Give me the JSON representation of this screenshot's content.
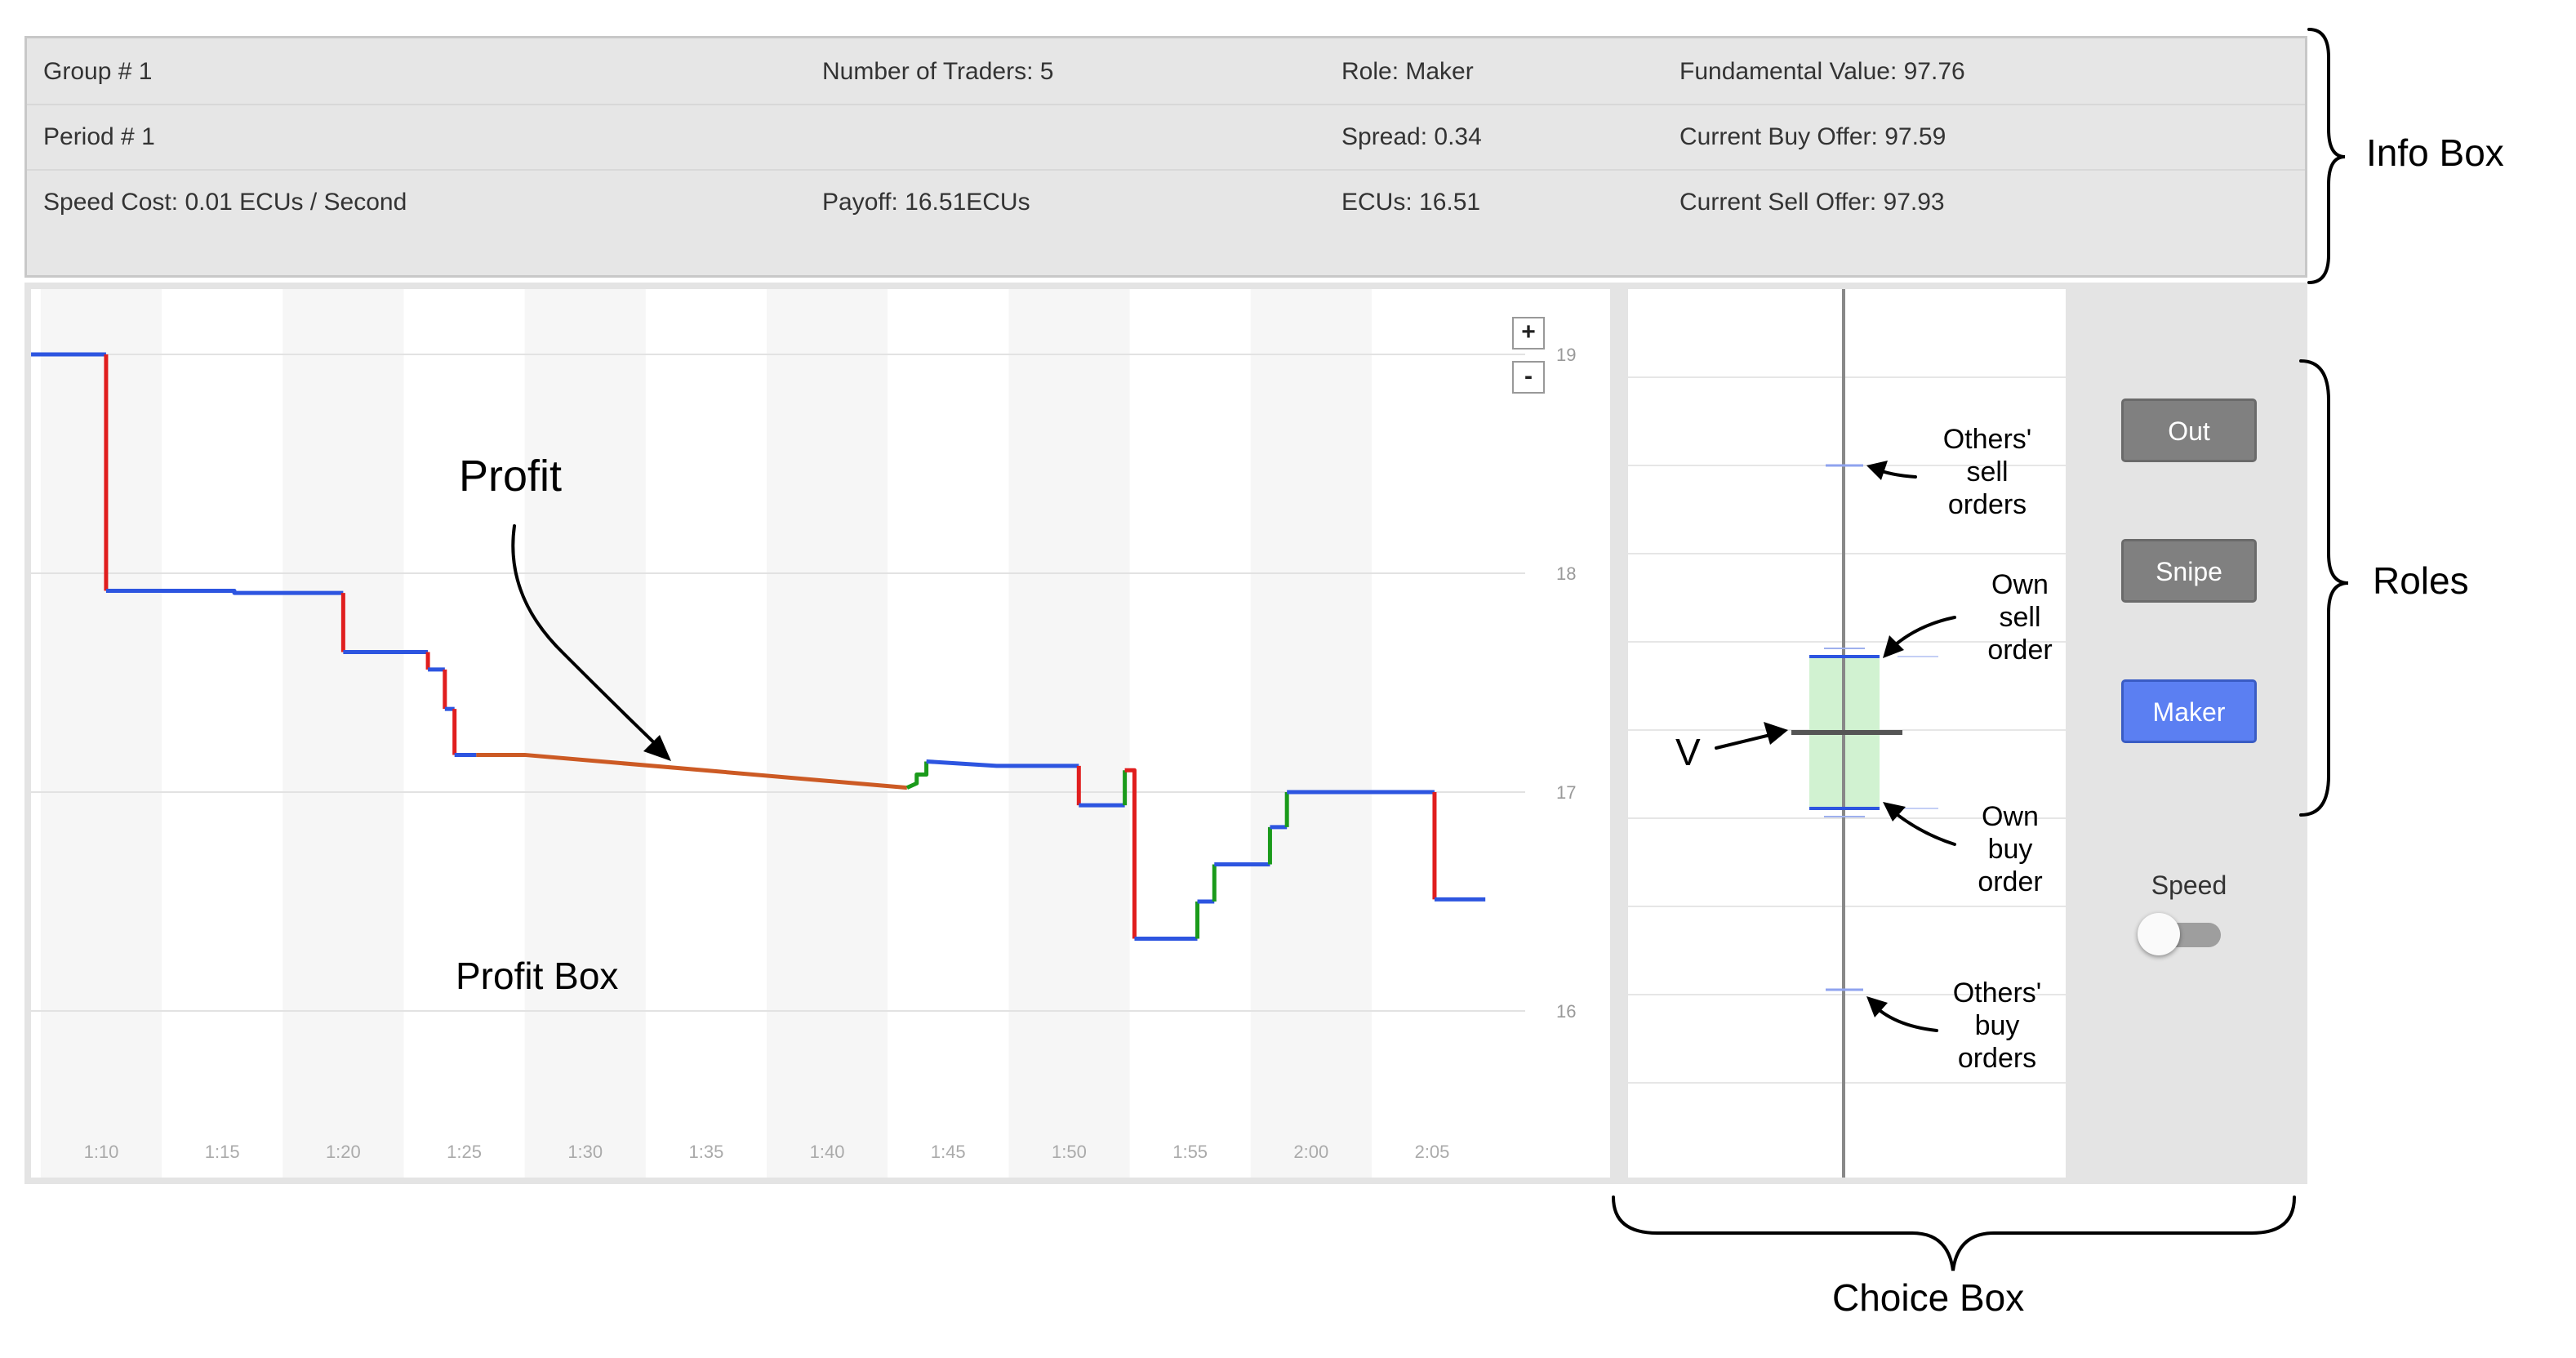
{
  "info_box": {
    "rows": [
      [
        "Group # 1",
        "Number of Traders: 5",
        "Role: Maker",
        "Fundamental Value: 97.76"
      ],
      [
        "Period # 1",
        "",
        "Spread: 0.34",
        "Current Buy Offer: 97.59"
      ],
      [
        "Speed Cost: 0.01 ECUs / Second",
        "Payoff: 16.51ECUs",
        "ECUs: 16.51",
        "Current Sell Offer: 97.93"
      ]
    ]
  },
  "profit_chart": {
    "zoom_in": "+",
    "zoom_out": "-"
  },
  "chart_data": {
    "type": "line",
    "x_tick_labels": [
      "1:10",
      "1:15",
      "1:20",
      "1:25",
      "1:30",
      "1:35",
      "1:40",
      "1:45",
      "1:50",
      "1:55",
      "2:00",
      "2:05"
    ],
    "y_tick_labels": [
      "19",
      "18",
      "17",
      "16"
    ],
    "ylim": [
      15.5,
      19.3
    ],
    "colors": {
      "maker": "#2d55e0",
      "snipe": "#e01e1e",
      "out": "#cc5a24",
      "gain": "#1a9a1a"
    },
    "segments": [
      {
        "role": "maker",
        "points": [
          [
            67.1,
            19.0
          ],
          [
            70.2,
            19.0
          ]
        ]
      },
      {
        "role": "snipe",
        "points": [
          [
            70.2,
            19.0
          ],
          [
            70.2,
            17.92
          ]
        ]
      },
      {
        "role": "maker",
        "points": [
          [
            70.2,
            17.92
          ],
          [
            75.5,
            17.92
          ],
          [
            75.5,
            17.91
          ],
          [
            80.0,
            17.91
          ]
        ]
      },
      {
        "role": "snipe",
        "points": [
          [
            80.0,
            17.91
          ],
          [
            80.0,
            17.64
          ]
        ]
      },
      {
        "role": "maker",
        "points": [
          [
            80.0,
            17.64
          ],
          [
            83.5,
            17.64
          ]
        ]
      },
      {
        "role": "snipe",
        "points": [
          [
            83.5,
            17.64
          ],
          [
            83.5,
            17.56
          ]
        ]
      },
      {
        "role": "maker",
        "points": [
          [
            83.5,
            17.56
          ],
          [
            84.2,
            17.56
          ]
        ]
      },
      {
        "role": "snipe",
        "points": [
          [
            84.2,
            17.56
          ],
          [
            84.2,
            17.38
          ]
        ]
      },
      {
        "role": "maker",
        "points": [
          [
            84.2,
            17.38
          ],
          [
            84.6,
            17.38
          ]
        ]
      },
      {
        "role": "snipe",
        "points": [
          [
            84.6,
            17.38
          ],
          [
            84.6,
            17.17
          ]
        ]
      },
      {
        "role": "maker",
        "points": [
          [
            84.6,
            17.17
          ],
          [
            85.5,
            17.17
          ]
        ]
      },
      {
        "role": "out",
        "points": [
          [
            85.5,
            17.17
          ],
          [
            87.5,
            17.17
          ],
          [
            103.3,
            17.02
          ]
        ]
      },
      {
        "role": "gain",
        "points": [
          [
            103.3,
            17.02
          ],
          [
            103.7,
            17.04
          ],
          [
            103.7,
            17.08
          ],
          [
            104.1,
            17.08
          ],
          [
            104.1,
            17.14
          ]
        ]
      },
      {
        "role": "maker",
        "points": [
          [
            104.1,
            17.14
          ],
          [
            107.0,
            17.12
          ],
          [
            110.4,
            17.12
          ]
        ]
      },
      {
        "role": "snipe",
        "points": [
          [
            110.4,
            17.12
          ],
          [
            110.4,
            16.94
          ]
        ]
      },
      {
        "role": "maker",
        "points": [
          [
            110.4,
            16.94
          ],
          [
            112.3,
            16.94
          ]
        ]
      },
      {
        "role": "gain",
        "points": [
          [
            112.3,
            16.94
          ],
          [
            112.3,
            17.1
          ]
        ]
      },
      {
        "role": "snipe",
        "points": [
          [
            112.3,
            17.1
          ],
          [
            112.7,
            17.1
          ],
          [
            112.7,
            16.33
          ]
        ]
      },
      {
        "role": "maker",
        "points": [
          [
            112.7,
            16.33
          ],
          [
            115.3,
            16.33
          ]
        ]
      },
      {
        "role": "gain",
        "points": [
          [
            115.3,
            16.33
          ],
          [
            115.3,
            16.5
          ]
        ]
      },
      {
        "role": "maker",
        "points": [
          [
            115.3,
            16.5
          ],
          [
            116.0,
            16.5
          ]
        ]
      },
      {
        "role": "gain",
        "points": [
          [
            116.0,
            16.5
          ],
          [
            116.0,
            16.67
          ]
        ]
      },
      {
        "role": "maker",
        "points": [
          [
            116.0,
            16.67
          ],
          [
            118.3,
            16.67
          ]
        ]
      },
      {
        "role": "gain",
        "points": [
          [
            118.3,
            16.67
          ],
          [
            118.3,
            16.84
          ]
        ]
      },
      {
        "role": "maker",
        "points": [
          [
            118.3,
            16.84
          ],
          [
            119.0,
            16.84
          ]
        ]
      },
      {
        "role": "gain",
        "points": [
          [
            119.0,
            16.84
          ],
          [
            119.0,
            17.0
          ]
        ]
      },
      {
        "role": "maker",
        "points": [
          [
            119.0,
            17.0
          ],
          [
            125.1,
            17.0
          ]
        ]
      },
      {
        "role": "snipe",
        "points": [
          [
            125.1,
            17.0
          ],
          [
            125.1,
            16.51
          ]
        ]
      },
      {
        "role": "maker",
        "points": [
          [
            125.1,
            16.51
          ],
          [
            127.2,
            16.51
          ]
        ]
      }
    ]
  },
  "choice_chart": {
    "value_line_color": "#555555",
    "order_line_color": "#2d55e0",
    "spread_fill": "#c9f0c9"
  },
  "roles": {
    "buttons": [
      {
        "label": "Out",
        "active": false
      },
      {
        "label": "Snipe",
        "active": false
      },
      {
        "label": "Maker",
        "active": true
      }
    ],
    "speed_label": "Speed",
    "speed_on": false
  },
  "annotations": {
    "info_box": "Info Box",
    "roles": "Roles",
    "choice_box": "Choice Box",
    "profit": "Profit",
    "profit_box": "Profit Box",
    "v": "V",
    "others_sell": [
      "Others'",
      "sell",
      "orders"
    ],
    "own_sell": [
      "Own",
      "sell",
      "order"
    ],
    "own_buy": [
      "Own",
      "buy",
      "order"
    ],
    "others_buy": [
      "Others'",
      "buy",
      "orders"
    ]
  }
}
